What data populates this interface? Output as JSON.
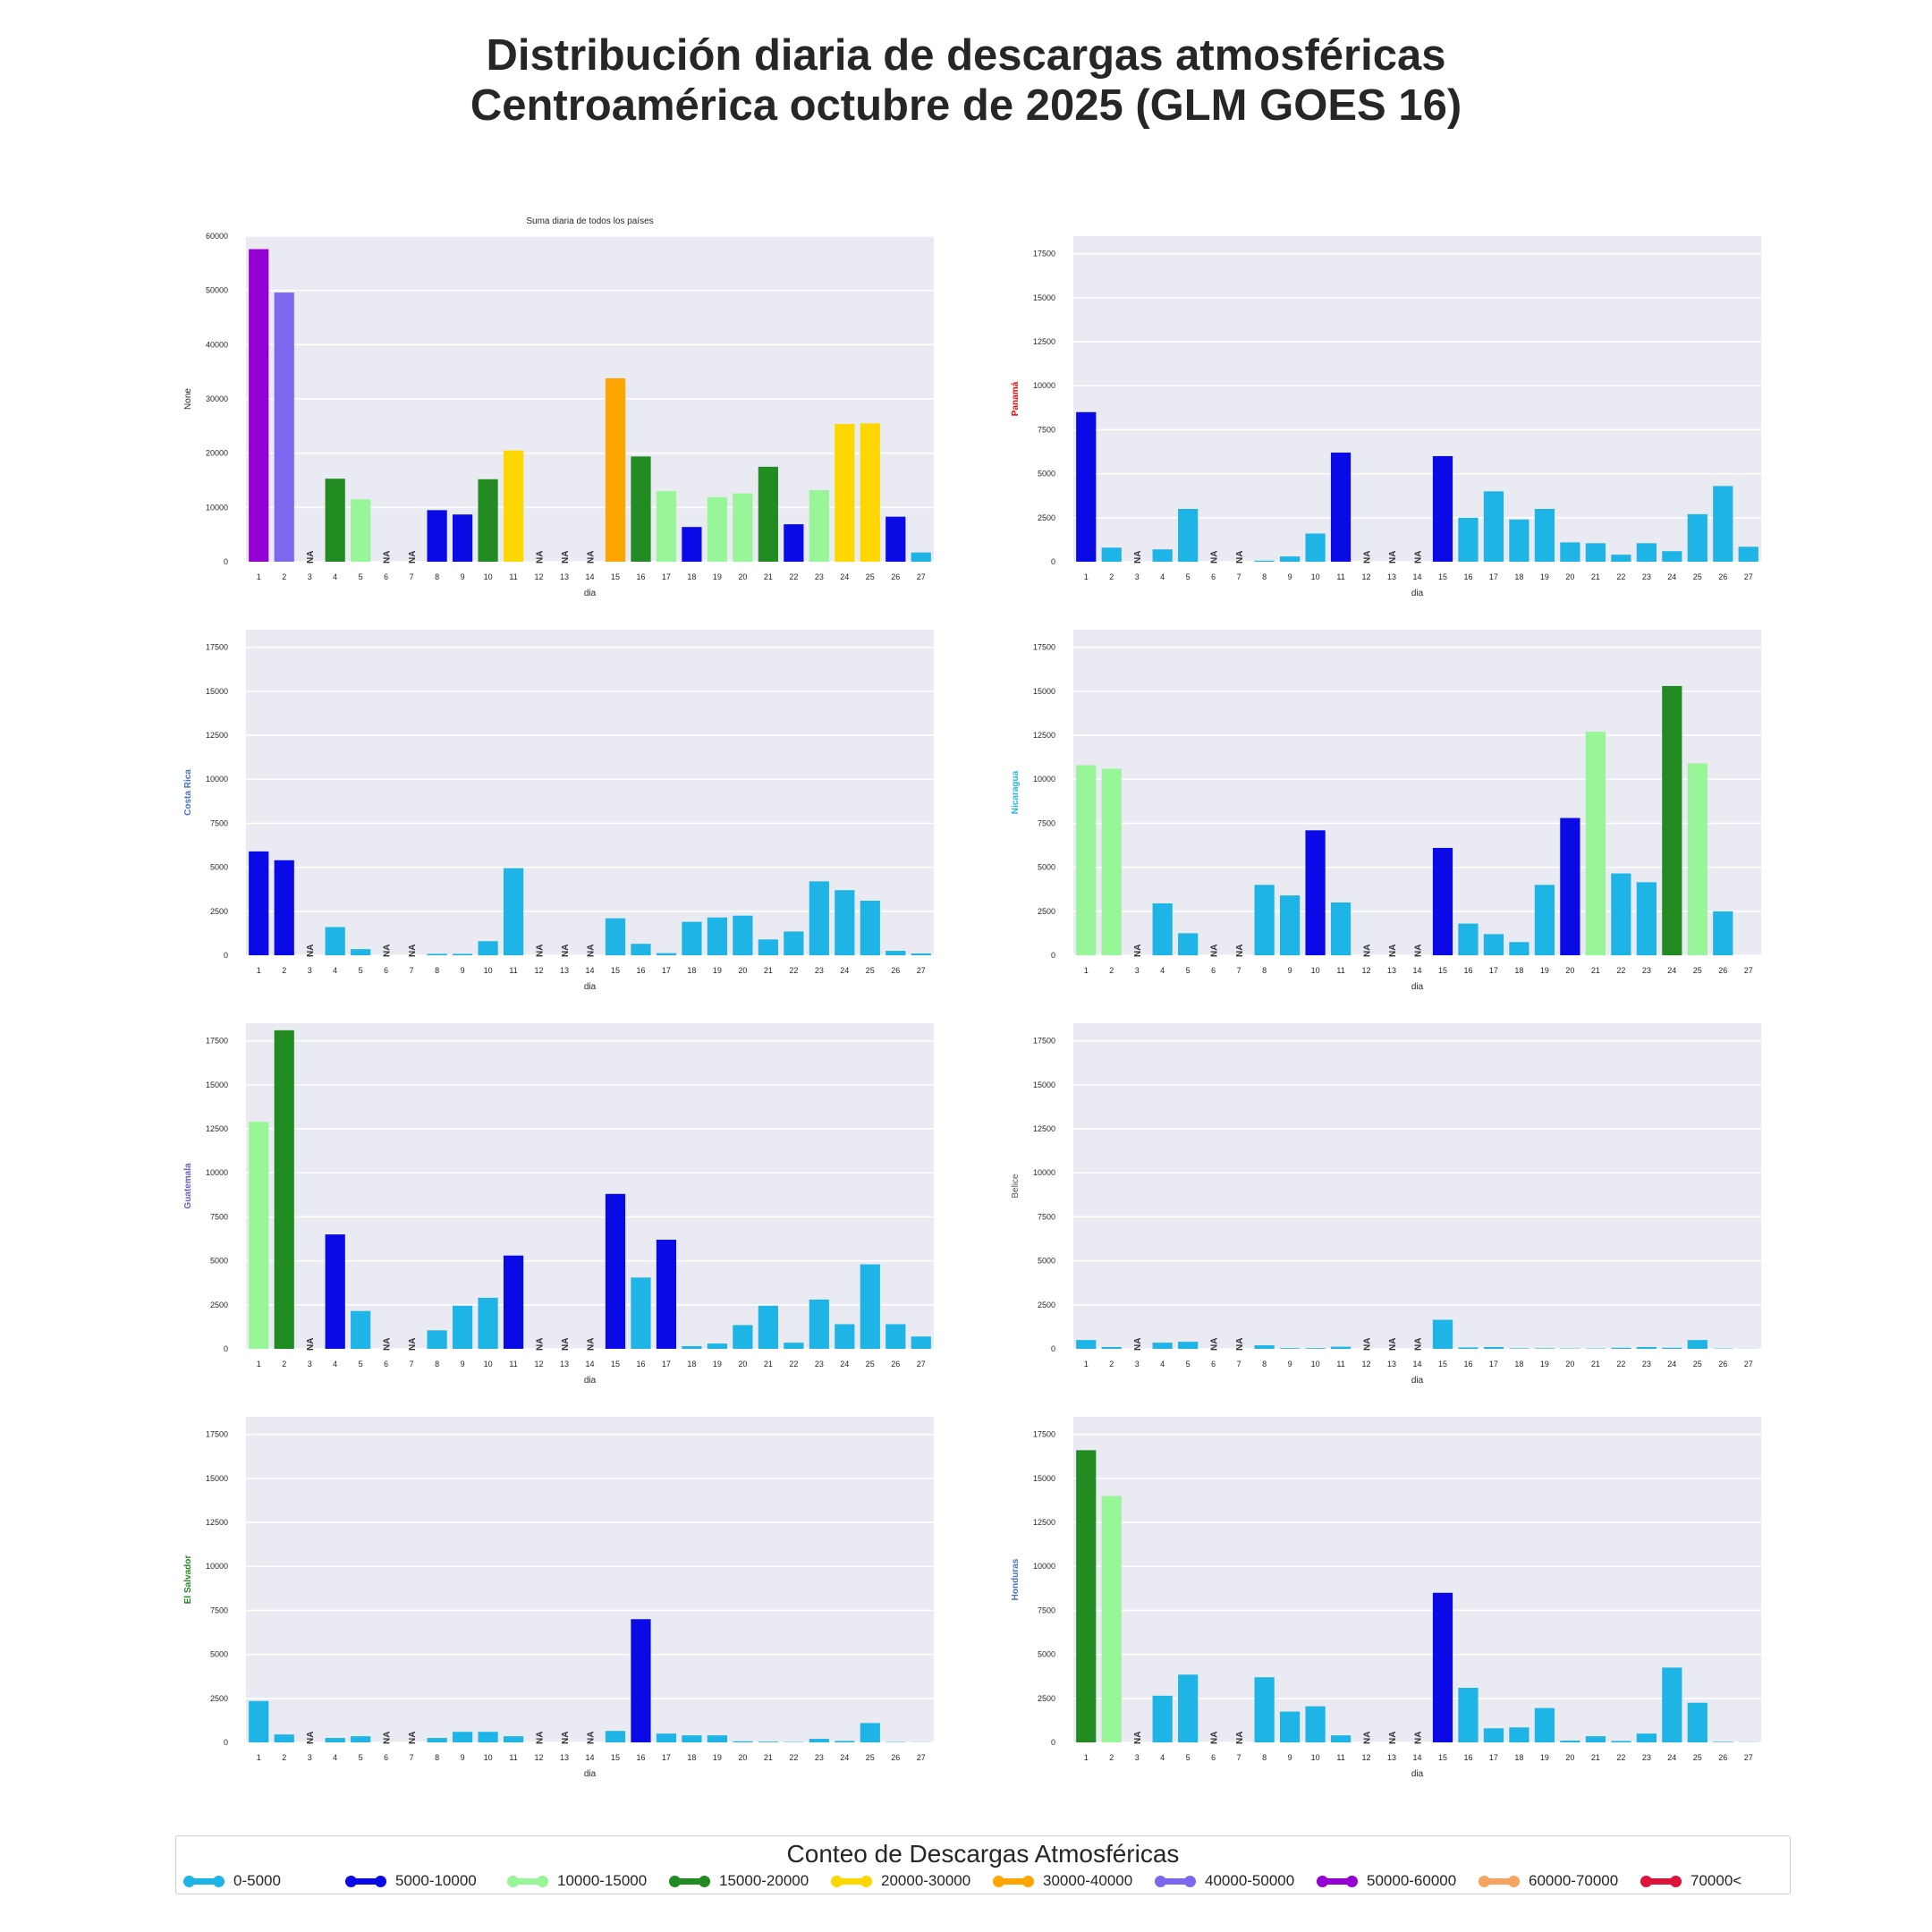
{
  "figure": {
    "title_line1": "Distribución diaria de descargas atmosféricas",
    "title_line2": "Centroamérica octubre de 2025 (GLM GOES 16)"
  },
  "legend": {
    "title": "Conteo de Descargas Atmosféricas",
    "items": [
      {
        "label": "0-5000",
        "color": "#1fb4e6"
      },
      {
        "label": "5000-10000",
        "color": "#0a0ae6"
      },
      {
        "label": "10000-15000",
        "color": "#98f598"
      },
      {
        "label": "15000-20000",
        "color": "#228b22"
      },
      {
        "label": "20000-30000",
        "color": "#ffd700"
      },
      {
        "label": "30000-40000",
        "color": "#ffa500"
      },
      {
        "label": "40000-50000",
        "color": "#7b68ee"
      },
      {
        "label": "50000-60000",
        "color": "#9400d3"
      },
      {
        "label": "60000-70000",
        "color": "#f4a460"
      },
      {
        "label": "70000<",
        "color": "#dc143c"
      }
    ]
  },
  "chart_data": [
    {
      "type": "bar",
      "title": "Suma diaria de todos los países",
      "xlabel": "dia",
      "ylabel": "None",
      "ylabel_color": "#262626",
      "ylim": [
        0,
        60000
      ],
      "yticks": [
        0,
        10000,
        20000,
        30000,
        40000,
        50000,
        60000
      ],
      "categories": [
        "1",
        "2",
        "3",
        "4",
        "5",
        "6",
        "7",
        "8",
        "9",
        "10",
        "11",
        "12",
        "13",
        "14",
        "15",
        "16",
        "17",
        "18",
        "19",
        "20",
        "21",
        "22",
        "23",
        "24",
        "25",
        "26",
        "27"
      ],
      "values": [
        57600,
        49600,
        null,
        15300,
        11500,
        null,
        null,
        9500,
        8700,
        15200,
        20500,
        null,
        null,
        null,
        33800,
        19400,
        13000,
        6400,
        11900,
        12600,
        17500,
        6900,
        13200,
        25400,
        25500,
        8300,
        1700
      ],
      "na_label": "NA"
    },
    {
      "type": "bar",
      "title": "",
      "xlabel": "dia",
      "ylabel": "Panamá",
      "ylabel_color": "#ff0000",
      "ylim": [
        0,
        18500
      ],
      "yticks": [
        0,
        2500,
        5000,
        7500,
        10000,
        12500,
        15000,
        17500
      ],
      "categories": [
        "1",
        "2",
        "3",
        "4",
        "5",
        "6",
        "7",
        "8",
        "9",
        "10",
        "11",
        "12",
        "13",
        "14",
        "15",
        "16",
        "17",
        "18",
        "19",
        "20",
        "21",
        "22",
        "23",
        "24",
        "25",
        "26",
        "27"
      ],
      "values": [
        8500,
        800,
        null,
        700,
        3000,
        null,
        null,
        60,
        300,
        1600,
        6200,
        null,
        null,
        null,
        6000,
        2500,
        4000,
        2400,
        3000,
        1100,
        1050,
        400,
        1050,
        600,
        2700,
        4300,
        850
      ],
      "na_label": "NA"
    },
    {
      "type": "bar",
      "title": "",
      "xlabel": "dia",
      "ylabel": "Costa Rica",
      "ylabel_color": "#4472c4",
      "ylim": [
        0,
        18500
      ],
      "yticks": [
        0,
        2500,
        5000,
        7500,
        10000,
        12500,
        15000,
        17500
      ],
      "categories": [
        "1",
        "2",
        "3",
        "4",
        "5",
        "6",
        "7",
        "8",
        "9",
        "10",
        "11",
        "12",
        "13",
        "14",
        "15",
        "16",
        "17",
        "18",
        "19",
        "20",
        "21",
        "22",
        "23",
        "24",
        "25",
        "26",
        "27"
      ],
      "values": [
        5900,
        5400,
        null,
        1600,
        350,
        null,
        null,
        80,
        80,
        800,
        4950,
        null,
        null,
        null,
        2100,
        650,
        120,
        1900,
        2150,
        2250,
        900,
        1350,
        4200,
        3700,
        3100,
        250,
        100
      ],
      "na_label": "NA"
    },
    {
      "type": "bar",
      "title": "",
      "xlabel": "dia",
      "ylabel": "Nicaragua",
      "ylabel_color": "#1fb4e6",
      "ylim": [
        0,
        18500
      ],
      "yticks": [
        0,
        2500,
        5000,
        7500,
        10000,
        12500,
        15000,
        17500
      ],
      "categories": [
        "1",
        "2",
        "3",
        "4",
        "5",
        "6",
        "7",
        "8",
        "9",
        "10",
        "11",
        "12",
        "13",
        "14",
        "15",
        "16",
        "17",
        "18",
        "19",
        "20",
        "21",
        "22",
        "23",
        "24",
        "25",
        "26",
        "27"
      ],
      "values": [
        10800,
        10600,
        null,
        2950,
        1250,
        null,
        null,
        4000,
        3400,
        7100,
        3000,
        null,
        null,
        null,
        6100,
        1800,
        1200,
        750,
        4000,
        7800,
        12700,
        4650,
        4150,
        15300,
        10900,
        2500,
        0
      ],
      "na_label": "NA"
    },
    {
      "type": "bar",
      "title": "",
      "xlabel": "dia",
      "ylabel": "Guatemala",
      "ylabel_color": "#6a5acd",
      "ylim": [
        0,
        18500
      ],
      "yticks": [
        0,
        2500,
        5000,
        7500,
        10000,
        12500,
        15000,
        17500
      ],
      "categories": [
        "1",
        "2",
        "3",
        "4",
        "5",
        "6",
        "7",
        "8",
        "9",
        "10",
        "11",
        "12",
        "13",
        "14",
        "15",
        "16",
        "17",
        "18",
        "19",
        "20",
        "21",
        "22",
        "23",
        "24",
        "25",
        "26",
        "27"
      ],
      "values": [
        12900,
        18100,
        null,
        6500,
        2150,
        null,
        null,
        1050,
        2450,
        2900,
        5300,
        null,
        null,
        null,
        8800,
        4050,
        6200,
        150,
        300,
        1350,
        2450,
        350,
        2800,
        1400,
        4800,
        1400,
        700
      ],
      "na_label": "NA"
    },
    {
      "type": "bar",
      "title": "",
      "xlabel": "dia",
      "ylabel": "Belice",
      "ylabel_color": "#555555",
      "ylim": [
        0,
        18500
      ],
      "yticks": [
        0,
        2500,
        5000,
        7500,
        10000,
        12500,
        15000,
        17500
      ],
      "categories": [
        "1",
        "2",
        "3",
        "4",
        "5",
        "6",
        "7",
        "8",
        "9",
        "10",
        "11",
        "12",
        "13",
        "14",
        "15",
        "16",
        "17",
        "18",
        "19",
        "20",
        "21",
        "22",
        "23",
        "24",
        "25",
        "26",
        "27"
      ],
      "values": [
        500,
        100,
        null,
        350,
        400,
        null,
        null,
        200,
        40,
        40,
        120,
        null,
        null,
        null,
        1650,
        80,
        100,
        30,
        30,
        20,
        20,
        60,
        100,
        60,
        500,
        20,
        10
      ],
      "na_label": "NA"
    },
    {
      "type": "bar",
      "title": "",
      "xlabel": "dia",
      "ylabel": "El Salvador",
      "ylabel_color": "#228b22",
      "ylim": [
        0,
        18500
      ],
      "yticks": [
        0,
        2500,
        5000,
        7500,
        10000,
        12500,
        15000,
        17500
      ],
      "categories": [
        "1",
        "2",
        "3",
        "4",
        "5",
        "6",
        "7",
        "8",
        "9",
        "10",
        "11",
        "12",
        "13",
        "14",
        "15",
        "16",
        "17",
        "18",
        "19",
        "20",
        "21",
        "22",
        "23",
        "24",
        "25",
        "26",
        "27"
      ],
      "values": [
        2350,
        450,
        null,
        250,
        350,
        null,
        null,
        250,
        600,
        600,
        350,
        null,
        null,
        null,
        650,
        7000,
        500,
        400,
        400,
        60,
        40,
        20,
        200,
        80,
        1100,
        20,
        10
      ],
      "na_label": "NA"
    },
    {
      "type": "bar",
      "title": "",
      "xlabel": "dia",
      "ylabel": "Honduras",
      "ylabel_color": "#4472c4",
      "ylim": [
        0,
        18500
      ],
      "yticks": [
        0,
        2500,
        5000,
        7500,
        10000,
        12500,
        15000,
        17500
      ],
      "categories": [
        "1",
        "2",
        "3",
        "4",
        "5",
        "6",
        "7",
        "8",
        "9",
        "10",
        "11",
        "12",
        "13",
        "14",
        "15",
        "16",
        "17",
        "18",
        "19",
        "20",
        "21",
        "22",
        "23",
        "24",
        "25",
        "26",
        "27"
      ],
      "values": [
        16600,
        14000,
        null,
        2650,
        3850,
        null,
        null,
        3700,
        1750,
        2050,
        400,
        null,
        null,
        null,
        8500,
        3100,
        800,
        850,
        1950,
        100,
        350,
        80,
        500,
        4250,
        2250,
        30,
        10
      ],
      "na_label": "NA"
    }
  ]
}
